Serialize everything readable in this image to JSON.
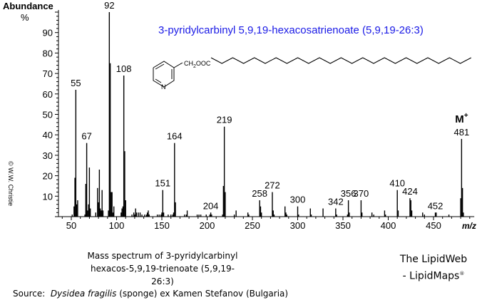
{
  "header": {
    "y_axis_label": "Abundance",
    "y_axis_unit": "%",
    "title": "3-pyridylcarbinyl 5,9,19-hexacosatrienoate (5,9,19-26:3)",
    "copyright": "© W.W. Christie"
  },
  "structure": {
    "head_group": "CH2OOC",
    "ring_atom": "N"
  },
  "caption": {
    "line1": "Mass spectrum of 3-pyridylcarbinyl",
    "line2": "hexacos-5,9,19-trienoate (5,9,19-26:3)"
  },
  "branding": {
    "line1": "The LipidWeb",
    "line2": "- LipidMaps",
    "mark": "®"
  },
  "source": {
    "prefix": "Source:",
    "species": "Dysidea fragilis",
    "suffix": "(sponge) ex Kamen Stefanov (Bulgaria)"
  },
  "colors": {
    "title": "#1a1ae6",
    "bars": "#000000"
  },
  "chart_data": {
    "type": "bar",
    "title": "3-pyridylcarbinyl 5,9,19-hexacosatrienoate (5,9,19-26:3)",
    "xlabel": "m/z",
    "ylabel": "Abundance %",
    "xlim": [
      35,
      495
    ],
    "ylim": [
      0,
      100
    ],
    "x_ticks": [
      50,
      100,
      150,
      200,
      250,
      300,
      350,
      400,
      450
    ],
    "y_ticks": [
      10,
      20,
      30,
      40,
      50,
      60,
      70,
      80,
      90
    ],
    "molecular_ion_label": "M+",
    "labeled_peaks": [
      {
        "mz": 55,
        "abundance": 62
      },
      {
        "mz": 67,
        "abundance": 36
      },
      {
        "mz": 92,
        "abundance": 100
      },
      {
        "mz": 108,
        "abundance": 69
      },
      {
        "mz": 151,
        "abundance": 13
      },
      {
        "mz": 164,
        "abundance": 36
      },
      {
        "mz": 204,
        "abundance": 2
      },
      {
        "mz": 219,
        "abundance": 44
      },
      {
        "mz": 258,
        "abundance": 8
      },
      {
        "mz": 272,
        "abundance": 12
      },
      {
        "mz": 300,
        "abundance": 5
      },
      {
        "mz": 342,
        "abundance": 4
      },
      {
        "mz": 356,
        "abundance": 8
      },
      {
        "mz": 370,
        "abundance": 8
      },
      {
        "mz": 410,
        "abundance": 13
      },
      {
        "mz": 424,
        "abundance": 9
      },
      {
        "mz": 452,
        "abundance": 2
      },
      {
        "mz": 481,
        "abundance": 38
      }
    ],
    "peaks": [
      [
        51,
        1
      ],
      [
        53,
        5
      ],
      [
        54,
        19
      ],
      [
        55,
        62
      ],
      [
        56,
        6
      ],
      [
        57,
        8
      ],
      [
        65,
        1
      ],
      [
        66,
        16
      ],
      [
        67,
        36
      ],
      [
        68,
        3
      ],
      [
        69,
        6
      ],
      [
        70,
        24
      ],
      [
        71,
        4
      ],
      [
        77,
        2
      ],
      [
        79,
        14
      ],
      [
        80,
        7
      ],
      [
        81,
        23
      ],
      [
        82,
        4
      ],
      [
        83,
        3
      ],
      [
        84,
        13
      ],
      [
        85,
        3
      ],
      [
        91,
        3
      ],
      [
        92,
        100
      ],
      [
        93,
        75
      ],
      [
        94,
        12
      ],
      [
        95,
        12
      ],
      [
        96,
        2
      ],
      [
        97,
        5
      ],
      [
        105,
        2
      ],
      [
        106,
        4
      ],
      [
        107,
        5
      ],
      [
        108,
        69
      ],
      [
        109,
        32
      ],
      [
        110,
        8
      ],
      [
        117,
        1
      ],
      [
        119,
        2
      ],
      [
        120,
        1
      ],
      [
        121,
        4
      ],
      [
        122,
        2
      ],
      [
        124,
        2
      ],
      [
        126,
        2
      ],
      [
        128,
        1
      ],
      [
        131,
        1
      ],
      [
        133,
        1
      ],
      [
        134,
        2
      ],
      [
        135,
        3
      ],
      [
        136,
        1
      ],
      [
        145,
        1
      ],
      [
        147,
        1
      ],
      [
        149,
        1
      ],
      [
        150,
        2
      ],
      [
        151,
        13
      ],
      [
        152,
        2
      ],
      [
        157,
        1
      ],
      [
        160,
        1
      ],
      [
        162,
        1
      ],
      [
        163,
        2
      ],
      [
        164,
        36
      ],
      [
        165,
        7
      ],
      [
        175,
        1
      ],
      [
        177,
        1
      ],
      [
        178,
        3
      ],
      [
        189,
        1
      ],
      [
        191,
        1
      ],
      [
        193,
        1
      ],
      [
        199,
        1
      ],
      [
        203,
        1
      ],
      [
        204,
        2
      ],
      [
        205,
        1
      ],
      [
        217,
        1
      ],
      [
        218,
        15
      ],
      [
        219,
        44
      ],
      [
        220,
        12
      ],
      [
        230,
        1
      ],
      [
        232,
        3
      ],
      [
        245,
        2
      ],
      [
        246,
        1
      ],
      [
        258,
        8
      ],
      [
        259,
        5
      ],
      [
        260,
        2
      ],
      [
        272,
        12
      ],
      [
        273,
        3
      ],
      [
        274,
        1
      ],
      [
        286,
        5
      ],
      [
        287,
        2
      ],
      [
        288,
        1
      ],
      [
        300,
        5
      ],
      [
        301,
        1
      ],
      [
        314,
        4
      ],
      [
        315,
        1
      ],
      [
        328,
        4
      ],
      [
        342,
        4
      ],
      [
        343,
        1
      ],
      [
        355,
        1
      ],
      [
        356,
        8
      ],
      [
        357,
        2
      ],
      [
        370,
        8
      ],
      [
        371,
        2
      ],
      [
        382,
        2
      ],
      [
        384,
        1
      ],
      [
        396,
        3
      ],
      [
        397,
        1
      ],
      [
        410,
        13
      ],
      [
        411,
        3
      ],
      [
        424,
        9
      ],
      [
        425,
        8
      ],
      [
        426,
        3
      ],
      [
        438,
        2
      ],
      [
        440,
        1
      ],
      [
        452,
        2
      ],
      [
        453,
        2
      ],
      [
        467,
        1
      ],
      [
        480,
        9
      ],
      [
        481,
        38
      ],
      [
        482,
        14
      ],
      [
        483,
        2
      ]
    ]
  }
}
